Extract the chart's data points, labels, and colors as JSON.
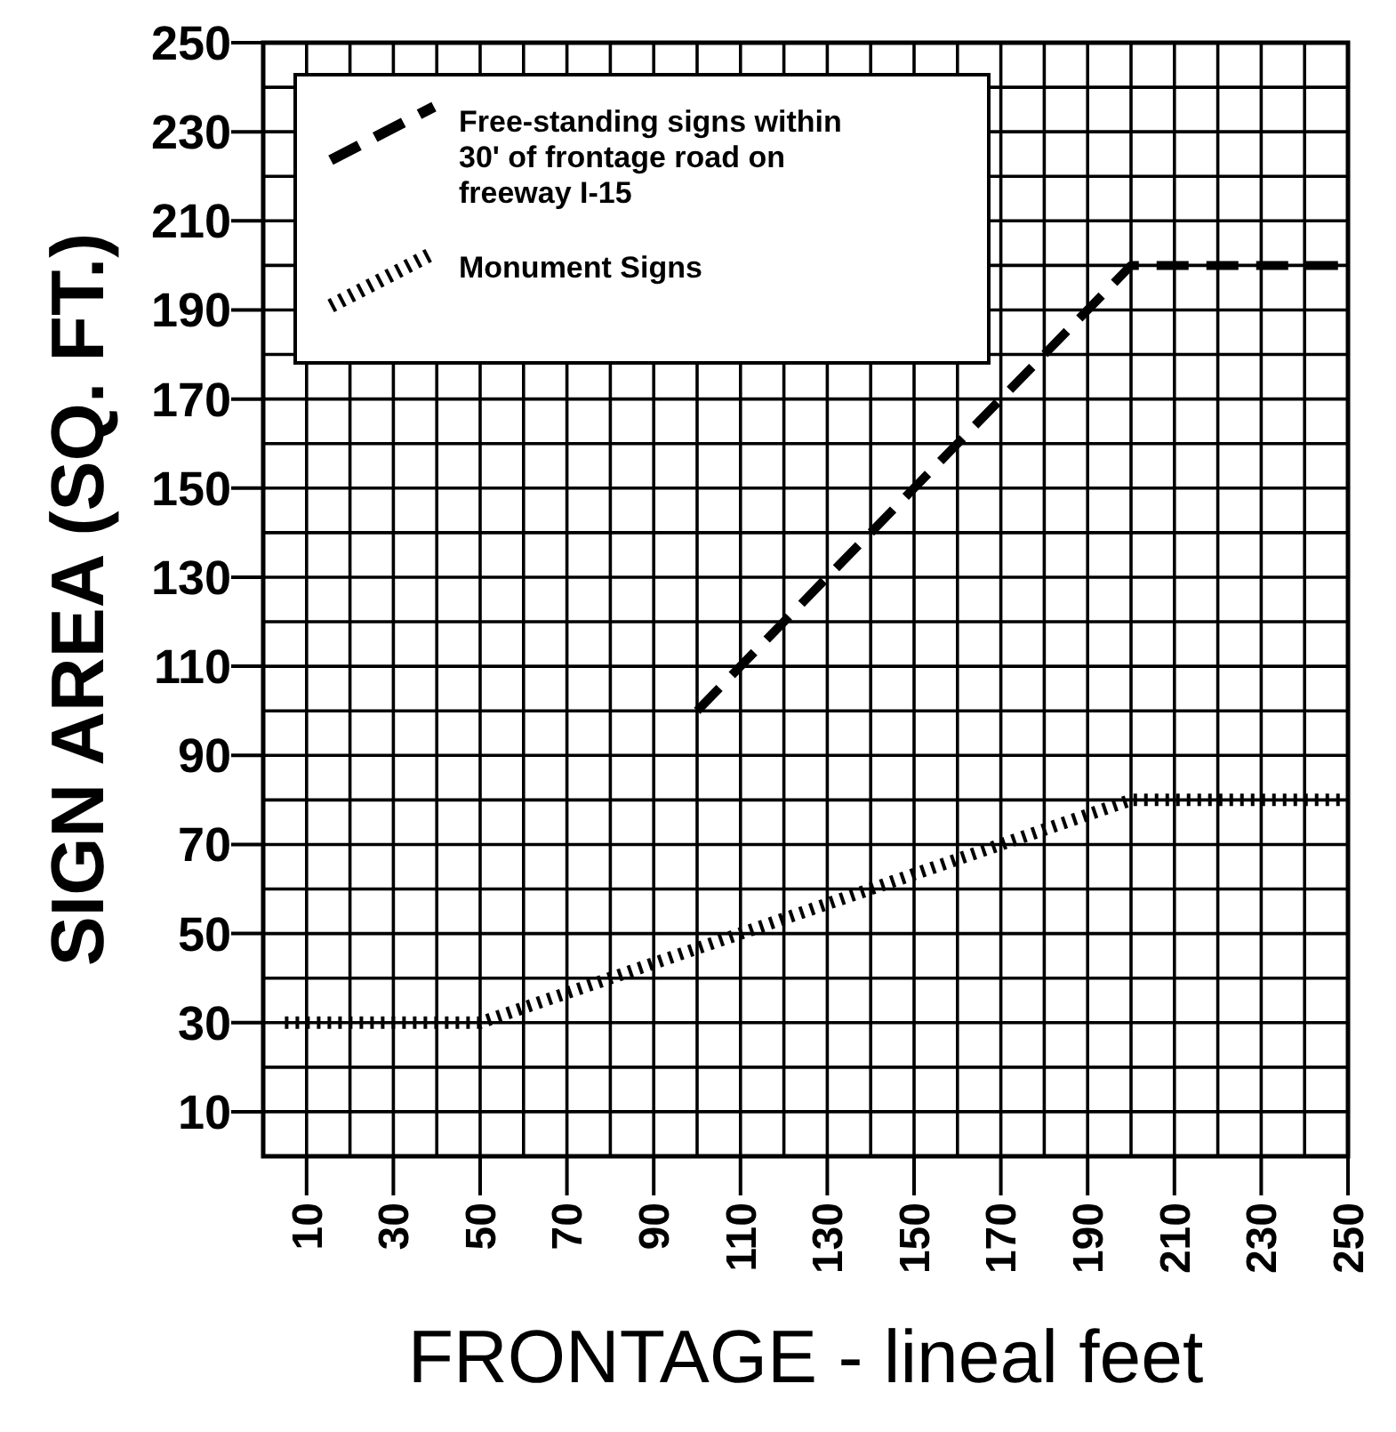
{
  "chart_data": {
    "type": "line",
    "xlabel": "FRONTAGE - lineal feet",
    "ylabel": "SIGN AREA (SQ. FT.)",
    "xlim": [
      0,
      250
    ],
    "xticks": [
      10,
      30,
      50,
      70,
      90,
      110,
      130,
      150,
      170,
      190,
      210,
      230,
      250
    ],
    "ylim": [
      0,
      250
    ],
    "yticks": [
      10,
      30,
      50,
      70,
      90,
      110,
      130,
      150,
      170,
      190,
      210,
      230,
      250
    ],
    "grid": true,
    "legend": "top left",
    "series": [
      {
        "name": "Free-standing signs within 30' of frontage road on freeway I-15",
        "color": "#000000",
        "line_style": "dashed",
        "x": [
          100,
          200,
          250
        ],
        "values": [
          100,
          200,
          200
        ]
      },
      {
        "name": "Monument Signs",
        "color": "#000000",
        "line_style": "dotted",
        "x": [
          5,
          50,
          200,
          250
        ],
        "values": [
          30,
          30,
          80,
          80
        ]
      }
    ]
  }
}
